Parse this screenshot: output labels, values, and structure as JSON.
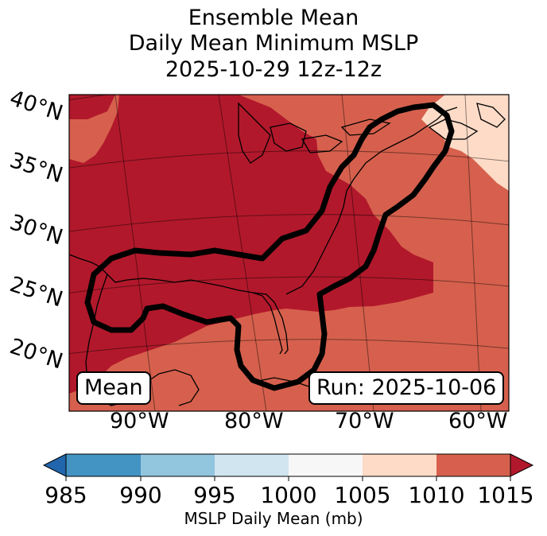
{
  "title": {
    "line1": "Ensemble Mean",
    "line2": "Daily Mean Minimum MSLP",
    "line3": "2025-10-29 12z-12z"
  },
  "map": {
    "lat_labels": [
      "40°N",
      "35°N",
      "30°N",
      "25°N",
      "20°N"
    ],
    "lon_labels": [
      "90°W",
      "80°W",
      "70°W",
      "60°W"
    ],
    "stat_badge": "Mean",
    "run_badge": "Run: 2025-10-06"
  },
  "colorbar": {
    "ticks": [
      "985",
      "990",
      "995",
      "1000",
      "1005",
      "1010",
      "1015"
    ],
    "label": "MSLP Daily Mean (mb)",
    "colors": {
      "below_985": "#2166ac",
      "985_990": "#4393c3",
      "990_995": "#92c5de",
      "995_1000": "#d1e5f0",
      "1000_1005": "#f7f7f7",
      "1005_1010": "#fddbc7",
      "1010_1015": "#d6604d",
      "above_1015": "#b2182b"
    }
  }
}
